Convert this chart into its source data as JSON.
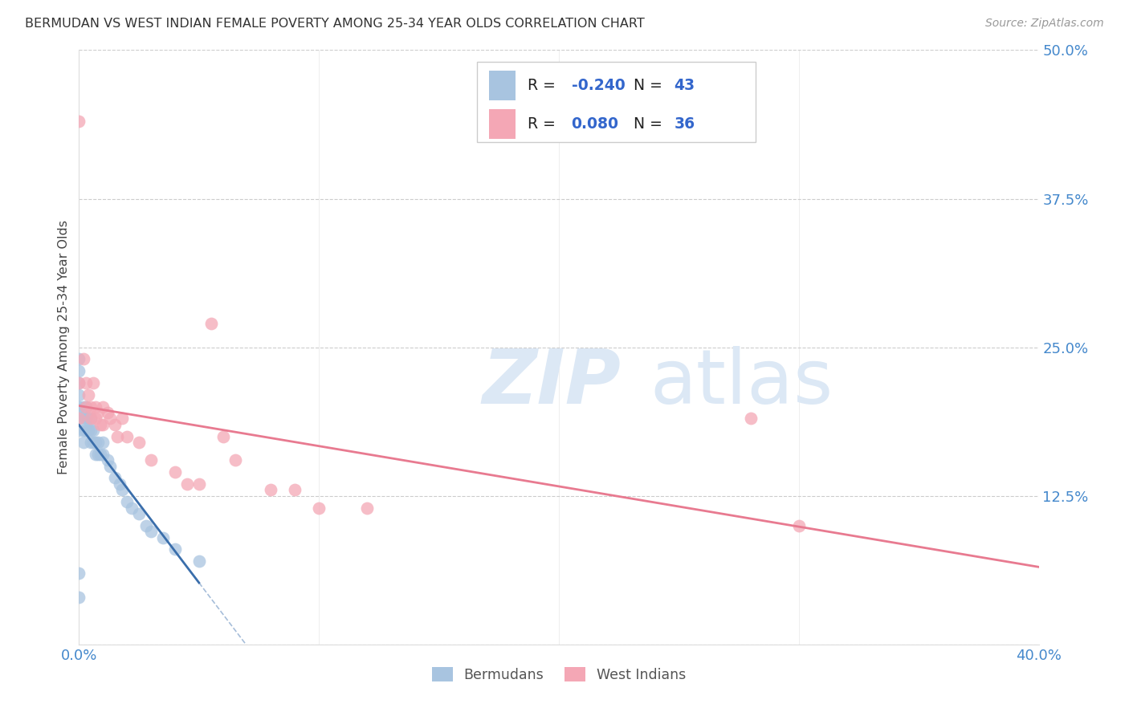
{
  "title": "BERMUDAN VS WEST INDIAN FEMALE POVERTY AMONG 25-34 YEAR OLDS CORRELATION CHART",
  "source": "Source: ZipAtlas.com",
  "ylabel": "Female Poverty Among 25-34 Year Olds",
  "xlim": [
    0.0,
    0.4
  ],
  "ylim": [
    0.0,
    0.5
  ],
  "xtick_positions": [
    0.0,
    0.1,
    0.2,
    0.3,
    0.4
  ],
  "xtick_labels": [
    "0.0%",
    "",
    "",
    "",
    "40.0%"
  ],
  "ytick_positions": [
    0.0,
    0.125,
    0.25,
    0.375,
    0.5
  ],
  "ytick_labels": [
    "",
    "12.5%",
    "25.0%",
    "37.5%",
    "50.0%"
  ],
  "background_color": "#ffffff",
  "grid_color": "#cccccc",
  "bermuda_color": "#a8c4e0",
  "west_indian_color": "#f4a7b5",
  "bermuda_line_color": "#3a6eab",
  "west_indian_line_color": "#e87a90",
  "legend_R_bermuda": "-0.240",
  "legend_N_bermuda": "43",
  "legend_R_west_indian": "0.080",
  "legend_N_west_indian": "36",
  "bermuda_x": [
    0.0,
    0.0,
    0.0,
    0.0,
    0.0,
    0.0,
    0.0,
    0.0,
    0.0,
    0.002,
    0.002,
    0.002,
    0.002,
    0.003,
    0.003,
    0.003,
    0.004,
    0.004,
    0.005,
    0.005,
    0.005,
    0.006,
    0.006,
    0.007,
    0.007,
    0.008,
    0.008,
    0.009,
    0.01,
    0.01,
    0.012,
    0.013,
    0.015,
    0.017,
    0.018,
    0.02,
    0.022,
    0.025,
    0.028,
    0.03,
    0.035,
    0.04,
    0.05
  ],
  "bermuda_y": [
    0.24,
    0.23,
    0.22,
    0.21,
    0.2,
    0.19,
    0.18,
    0.06,
    0.04,
    0.2,
    0.19,
    0.18,
    0.17,
    0.2,
    0.19,
    0.18,
    0.19,
    0.18,
    0.19,
    0.18,
    0.17,
    0.18,
    0.17,
    0.17,
    0.16,
    0.17,
    0.16,
    0.16,
    0.17,
    0.16,
    0.155,
    0.15,
    0.14,
    0.135,
    0.13,
    0.12,
    0.115,
    0.11,
    0.1,
    0.095,
    0.09,
    0.08,
    0.07
  ],
  "west_indian_x": [
    0.0,
    0.0,
    0.0,
    0.002,
    0.003,
    0.003,
    0.004,
    0.005,
    0.005,
    0.006,
    0.007,
    0.007,
    0.008,
    0.009,
    0.01,
    0.01,
    0.012,
    0.013,
    0.015,
    0.016,
    0.018,
    0.02,
    0.025,
    0.03,
    0.04,
    0.045,
    0.05,
    0.055,
    0.06,
    0.065,
    0.08,
    0.09,
    0.1,
    0.12,
    0.28,
    0.3
  ],
  "west_indian_y": [
    0.44,
    0.22,
    0.19,
    0.24,
    0.22,
    0.2,
    0.21,
    0.2,
    0.19,
    0.22,
    0.2,
    0.19,
    0.195,
    0.185,
    0.2,
    0.185,
    0.195,
    0.19,
    0.185,
    0.175,
    0.19,
    0.175,
    0.17,
    0.155,
    0.145,
    0.135,
    0.135,
    0.27,
    0.175,
    0.155,
    0.13,
    0.13,
    0.115,
    0.115,
    0.19,
    0.1
  ],
  "watermark_zip": "ZIP",
  "watermark_atlas": "atlas",
  "watermark_color": "#dce8f5"
}
